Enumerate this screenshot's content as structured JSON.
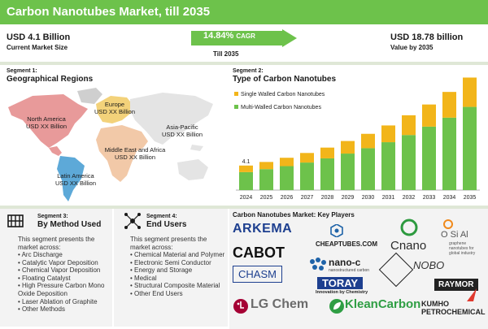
{
  "header": {
    "title": "Carbon Nanotubes Market, till 2035"
  },
  "metrics": {
    "current_value": "USD 4.1 Billion",
    "current_label": "Current Market Size",
    "cagr_value": "14.84%",
    "cagr_unit": "CAGR",
    "till_label": "Till 2035",
    "future_value": "USD 18.78 billion",
    "future_label": "Value by 2035"
  },
  "segment1": {
    "small": "Segment 1:",
    "title": "Geographical Regions",
    "regions": [
      {
        "name": "North America",
        "value": "USD XX Billion"
      },
      {
        "name": "Europe",
        "value": "USD XX Billion"
      },
      {
        "name": "Asia-Pacific",
        "value": "USD XX Billion"
      },
      {
        "name": "Middle East and Africa",
        "value": "USD XX Billion"
      },
      {
        "name": "Latin America",
        "value": "USD XX Billion"
      }
    ]
  },
  "segment2": {
    "small": "Segment 2:",
    "title": "Type of Carbon Nanotubes"
  },
  "colors": {
    "green": "#6dc24b",
    "yellow": "#f2b51a",
    "grey_map": "#cfcfcf",
    "na_map": "#e89a9a",
    "eu_map": "#f3d27a",
    "mea_map": "#f2c9a8",
    "ap_map": "#e4e4e4",
    "la_map": "#5da9d8"
  },
  "chart_data": {
    "type": "bar",
    "stacked": true,
    "title": "Type of Carbon Nanotubes",
    "categories": [
      "2024",
      "2025",
      "2026",
      "2027",
      "2028",
      "2029",
      "2030",
      "2031",
      "2032",
      "2033",
      "2034",
      "2035"
    ],
    "series": [
      {
        "name": "Multi-Walled Carbon Nanotubes",
        "color": "#6dc24b",
        "values": [
          3.0,
          3.5,
          4.0,
          4.6,
          5.3,
          6.1,
          7.0,
          8.0,
          9.2,
          10.6,
          12.1,
          13.9
        ]
      },
      {
        "name": "Single Walled Carbon Nanotubes",
        "color": "#f2b51a",
        "values": [
          1.1,
          1.2,
          1.4,
          1.6,
          1.8,
          2.1,
          2.4,
          2.8,
          3.3,
          3.7,
          4.3,
          4.9
        ]
      }
    ],
    "annotations": [
      {
        "category": "2024",
        "label": "4.1"
      }
    ],
    "ylim": [
      0,
      19
    ],
    "legend": "top-left",
    "grid": false
  },
  "segment3": {
    "small": "Segment 3:",
    "title": "By Method Used",
    "desc": "This segment presents the market across:",
    "items": [
      "Arc Discharge",
      "Catalytic Vapor Deposition",
      "Chemical Vapor Deposition",
      "Floating Catalyst",
      "High Pressure Carbon Mono Oxide Deposition",
      "Laser Ablation of Graphite",
      "Other Methods"
    ]
  },
  "segment4": {
    "small": "Segment 4:",
    "title": "End Users",
    "desc": "This segment presents the market across:",
    "items": [
      "Chemical Material and Polymer",
      "Electronic Semi Conductor",
      "Energy and Storage",
      "Medical",
      "Structural Composite Material",
      "Other End Users"
    ]
  },
  "players": {
    "title": "Carbon Nanotubes Market: Key Players",
    "logos": {
      "arkema": "ARKEMA",
      "cheaptubes": "CHEAPTUBES.COM",
      "cnano": "Cnano",
      "ocsial_top": "O  Si Al",
      "ocsial_sub": "graphene nanotubes for global industry",
      "cabot": "CABOT",
      "nanoc": "nano-c",
      "nanoc_sub": "nanostructured carbon",
      "chasm": "CHASM",
      "toray": "TORAY",
      "toray_sub": "Innovation by Chemistry",
      "nobo": "NOBO",
      "raymor": "RAYMOR",
      "lgchem": "LG Chem",
      "klean": "KleanCarbon",
      "kumho_1": "KUMHO",
      "kumho_2": "PETROCHEMICAL"
    }
  }
}
